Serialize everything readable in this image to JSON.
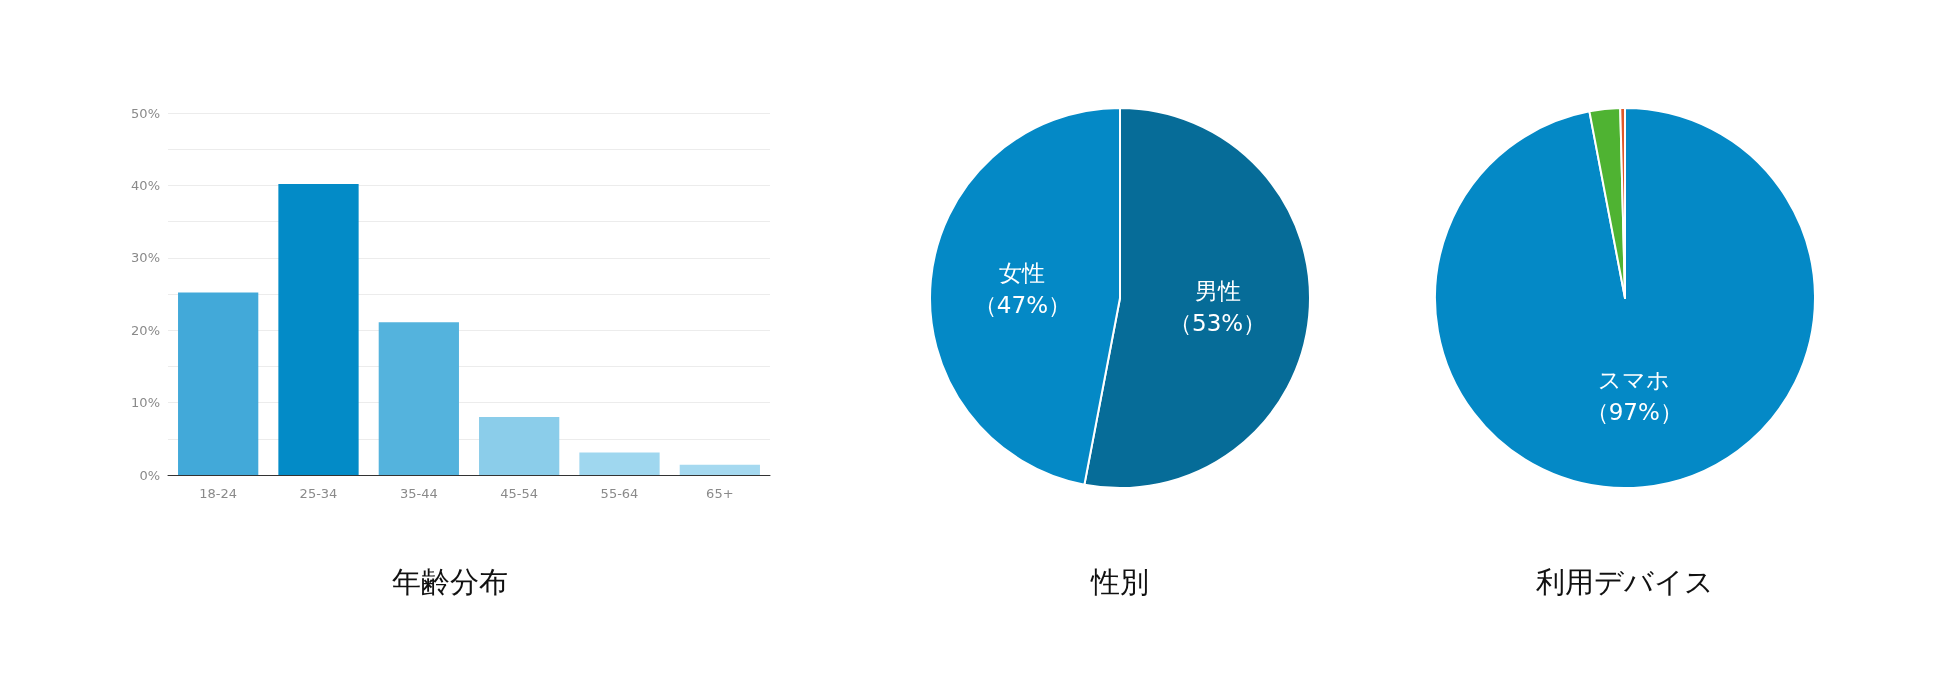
{
  "chart_data": [
    {
      "type": "bar",
      "title": "年齢分布",
      "categories": [
        "18-24",
        "25-34",
        "35-44",
        "45-54",
        "55-64",
        "65+"
      ],
      "values": [
        25.2,
        40.2,
        21.1,
        8.0,
        3.1,
        1.4
      ],
      "colors": [
        "#42a9d9",
        "#038bc7",
        "#54b3dd",
        "#8bcdea",
        "#9fd7ef",
        "#a5d9f0"
      ],
      "ylim": [
        0,
        50
      ],
      "yticks": [
        {
          "value": 0,
          "label": "0%"
        },
        {
          "value": 5,
          "label": null
        },
        {
          "value": 10,
          "label": "10%"
        },
        {
          "value": 15,
          "label": null
        },
        {
          "value": 20,
          "label": "20%"
        },
        {
          "value": 25,
          "label": null
        },
        {
          "value": 30,
          "label": "30%"
        },
        {
          "value": 35,
          "label": null
        },
        {
          "value": 40,
          "label": "40%"
        },
        {
          "value": 45,
          "label": null
        },
        {
          "value": 50,
          "label": "50%"
        }
      ],
      "grid": "y",
      "legend": false
    },
    {
      "type": "pie",
      "title": "性別",
      "categories": [
        "男性",
        "女性"
      ],
      "values": [
        53,
        47
      ],
      "colors": [
        "#066c98",
        "#0489c6"
      ],
      "value_labels": [
        "（53%）",
        "（47%）"
      ],
      "legend": false
    },
    {
      "type": "pie",
      "title": "利用デバイス",
      "categories": [
        "スマホ",
        null,
        null
      ],
      "values": [
        97,
        2.6,
        0.4
      ],
      "colors": [
        "#0489c6",
        "#4fb332",
        "#e0572a"
      ],
      "value_labels": [
        "（97%）",
        null,
        null
      ],
      "legend": false
    }
  ]
}
